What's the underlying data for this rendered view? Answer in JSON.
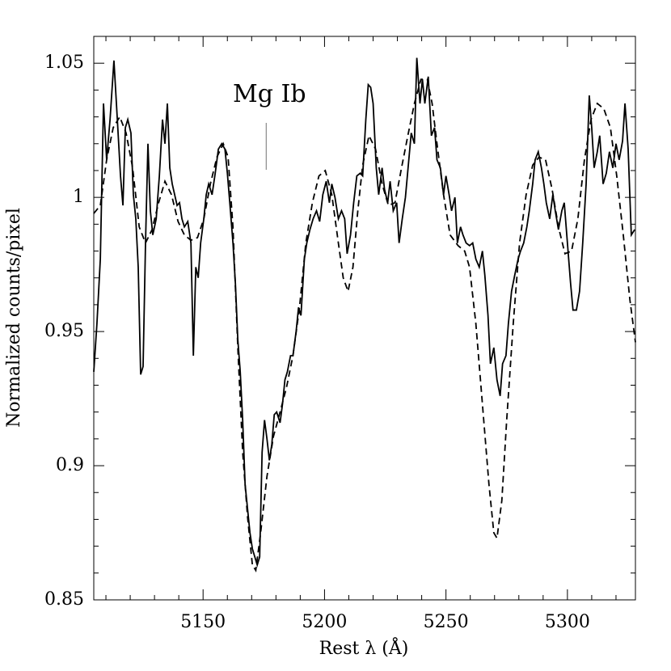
{
  "chart_data": {
    "type": "line",
    "xlabel": "Rest λ (Å)",
    "ylabel": "Normalized counts/pixel",
    "xlim": [
      5105,
      5328
    ],
    "ylim": [
      0.85,
      1.06
    ],
    "xticks": [
      5150,
      5200,
      5250,
      5300
    ],
    "yticks": [
      {
        "value": 0.85,
        "label": "0.85"
      },
      0.9,
      0.95,
      1,
      1.05
    ],
    "xminorticks": [
      5110,
      5120,
      5130,
      5140,
      5160,
      5170,
      5180,
      5190,
      5210,
      5220,
      5230,
      5240,
      5260,
      5270,
      5280,
      5290,
      5310,
      5320
    ],
    "yminorticks": [
      0.86,
      0.87,
      0.88,
      0.89,
      0.91,
      0.92,
      0.93,
      0.94,
      0.96,
      0.97,
      0.98,
      0.99,
      1.01,
      1.02,
      1.03,
      1.04,
      1.06
    ],
    "annotations": [
      {
        "text": "Mg Ib",
        "x": 5176,
        "color": "#888888"
      }
    ],
    "series": [
      {
        "color": "#000000",
        "style": "solid",
        "x": [
          5105.0,
          5106.3,
          5107.7,
          5109.0,
          5110.3,
          5111.7,
          5113.3,
          5114.7,
          5116.0,
          5117.0,
          5118.0,
          5119.0,
          5120.3,
          5121.3,
          5122.3,
          5123.3,
          5124.3,
          5125.3,
          5126.3,
          5127.3,
          5128.3,
          5129.3,
          5130.7,
          5132.0,
          5133.3,
          5134.3,
          5135.3,
          5136.3,
          5137.3,
          5138.3,
          5139.3,
          5140.3,
          5141.3,
          5142.3,
          5143.7,
          5145.0,
          5146.0,
          5147.0,
          5148.0,
          5149.0,
          5150.3,
          5151.3,
          5152.3,
          5153.7,
          5155.0,
          5156.3,
          5157.7,
          5159.0,
          5160.0,
          5161.0,
          5162.3,
          5163.3,
          5164.3,
          5165.3,
          5166.3,
          5167.3,
          5168.3,
          5169.3,
          5170.3,
          5171.3,
          5172.3,
          5173.3,
          5174.3,
          5175.3,
          5176.3,
          5177.3,
          5178.3,
          5179.3,
          5180.3,
          5181.7,
          5182.7,
          5183.7,
          5184.7,
          5186.0,
          5187.0,
          5188.3,
          5189.3,
          5190.3,
          5191.7,
          5192.7,
          5194.0,
          5195.3,
          5196.7,
          5198.0,
          5199.3,
          5200.7,
          5202.0,
          5203.0,
          5204.3,
          5205.7,
          5207.0,
          5208.3,
          5209.3,
          5210.7,
          5212.0,
          5213.3,
          5214.7,
          5215.7,
          5217.0,
          5218.0,
          5219.0,
          5220.0,
          5221.3,
          5222.3,
          5223.7,
          5224.7,
          5226.0,
          5227.0,
          5228.3,
          5229.7,
          5230.7,
          5232.0,
          5233.3,
          5234.7,
          5235.7,
          5237.0,
          5238.0,
          5239.3,
          5240.3,
          5241.3,
          5242.7,
          5244.0,
          5245.3,
          5246.3,
          5247.7,
          5249.0,
          5250.0,
          5251.3,
          5252.3,
          5253.7,
          5254.7,
          5256.0,
          5257.0,
          5258.3,
          5259.7,
          5261.0,
          5262.3,
          5263.7,
          5265.0,
          5266.0,
          5267.3,
          5268.3,
          5269.7,
          5271.0,
          5272.3,
          5273.3,
          5274.7,
          5275.7,
          5277.0,
          5278.3,
          5279.7,
          5280.7,
          5282.0,
          5283.3,
          5284.3,
          5285.7,
          5286.7,
          5288.0,
          5289.3,
          5290.3,
          5291.3,
          5292.7,
          5294.0,
          5295.0,
          5296.3,
          5297.7,
          5298.7,
          5300.0,
          5301.3,
          5302.3,
          5303.7,
          5305.0,
          5306.3,
          5307.7,
          5309.0,
          5310.0,
          5311.0,
          5312.3,
          5313.3,
          5314.7,
          5316.0,
          5317.3,
          5318.7,
          5320.0,
          5321.3,
          5322.7,
          5323.7,
          5325.0,
          5326.3,
          5327.7
        ],
        "values": [
          0.935,
          0.953,
          0.977,
          1.035,
          1.014,
          1.029,
          1.051,
          1.029,
          1.008,
          0.997,
          1.026,
          1.029,
          1.024,
          1.001,
          0.992,
          0.974,
          0.934,
          0.937,
          0.983,
          1.02,
          0.995,
          0.986,
          0.992,
          1.008,
          1.029,
          1.02,
          1.035,
          1.011,
          1.005,
          1.001,
          0.997,
          0.998,
          0.992,
          0.989,
          0.991,
          0.983,
          0.941,
          0.974,
          0.97,
          0.983,
          0.992,
          1.001,
          1.005,
          1.001,
          1.009,
          1.018,
          1.02,
          1.018,
          1.009,
          0.998,
          0.983,
          0.968,
          0.947,
          0.935,
          0.917,
          0.893,
          0.884,
          0.875,
          0.869,
          0.866,
          0.863,
          0.866,
          0.905,
          0.917,
          0.91,
          0.902,
          0.908,
          0.919,
          0.92,
          0.916,
          0.923,
          0.932,
          0.935,
          0.941,
          0.941,
          0.95,
          0.959,
          0.956,
          0.977,
          0.983,
          0.988,
          0.992,
          0.995,
          0.991,
          1.001,
          1.006,
          0.998,
          1.005,
          1.0,
          0.992,
          0.995,
          0.992,
          0.979,
          0.986,
          0.998,
          1.008,
          1.009,
          1.008,
          1.029,
          1.042,
          1.041,
          1.035,
          1.011,
          1.001,
          1.011,
          1.003,
          0.998,
          1.006,
          0.995,
          0.998,
          0.983,
          0.992,
          1.0,
          1.014,
          1.024,
          1.02,
          1.052,
          1.035,
          1.044,
          1.035,
          1.045,
          1.023,
          1.026,
          1.014,
          1.011,
          1.001,
          1.008,
          1.001,
          0.995,
          1.0,
          0.983,
          0.989,
          0.986,
          0.983,
          0.982,
          0.983,
          0.977,
          0.974,
          0.98,
          0.971,
          0.956,
          0.938,
          0.944,
          0.932,
          0.926,
          0.938,
          0.941,
          0.953,
          0.965,
          0.971,
          0.977,
          0.98,
          0.983,
          0.989,
          0.995,
          1.005,
          1.014,
          1.017,
          1.011,
          1.005,
          0.998,
          0.992,
          1.001,
          0.995,
          0.988,
          0.995,
          0.998,
          0.983,
          0.968,
          0.958,
          0.958,
          0.965,
          0.983,
          1.005,
          1.038,
          1.026,
          1.011,
          1.017,
          1.023,
          1.005,
          1.009,
          1.017,
          1.011,
          1.02,
          1.014,
          1.021,
          1.035,
          1.018,
          0.986,
          0.988
        ]
      },
      {
        "color": "#000000",
        "style": "dashed",
        "x": [
          5105.0,
          5107.7,
          5110.3,
          5113.0,
          5115.7,
          5118.3,
          5121.0,
          5123.7,
          5126.3,
          5129.0,
          5131.7,
          5134.3,
          5137.0,
          5139.7,
          5142.3,
          5145.0,
          5147.7,
          5150.3,
          5153.0,
          5155.7,
          5158.3,
          5160.3,
          5162.3,
          5164.3,
          5166.3,
          5168.3,
          5170.3,
          5171.7,
          5173.7,
          5176.3,
          5179.0,
          5181.7,
          5184.3,
          5187.0,
          5189.7,
          5192.3,
          5195.0,
          5197.7,
          5200.3,
          5203.0,
          5205.7,
          5207.7,
          5209.7,
          5211.7,
          5213.7,
          5215.7,
          5218.3,
          5221.0,
          5223.7,
          5226.3,
          5229.0,
          5231.7,
          5234.3,
          5237.0,
          5239.7,
          5242.3,
          5244.3,
          5246.3,
          5249.0,
          5251.7,
          5255.0,
          5257.7,
          5259.7,
          5262.3,
          5265.0,
          5267.7,
          5269.7,
          5271.0,
          5273.0,
          5275.0,
          5277.7,
          5280.3,
          5283.0,
          5285.7,
          5288.3,
          5291.0,
          5293.7,
          5296.3,
          5299.0,
          5301.7,
          5304.3,
          5307.0,
          5309.7,
          5312.3,
          5315.0,
          5317.7,
          5320.3,
          5323.0,
          5325.7,
          5328.0
        ],
        "values": [
          0.994,
          0.997,
          1.014,
          1.026,
          1.03,
          1.024,
          1.011,
          0.989,
          0.983,
          0.988,
          0.998,
          1.006,
          1.001,
          0.991,
          0.986,
          0.984,
          0.985,
          0.992,
          1.005,
          1.015,
          1.02,
          1.015,
          0.989,
          0.944,
          0.905,
          0.881,
          0.863,
          0.861,
          0.875,
          0.896,
          0.911,
          0.92,
          0.929,
          0.941,
          0.959,
          0.983,
          0.998,
          1.008,
          1.01,
          1.001,
          0.983,
          0.97,
          0.965,
          0.974,
          0.995,
          1.012,
          1.023,
          1.018,
          1.005,
          0.997,
          0.998,
          1.011,
          1.023,
          1.035,
          1.044,
          1.044,
          1.035,
          1.02,
          1.001,
          0.986,
          0.982,
          0.98,
          0.974,
          0.953,
          0.923,
          0.893,
          0.875,
          0.873,
          0.887,
          0.917,
          0.953,
          0.983,
          1.001,
          1.012,
          1.015,
          1.014,
          1.003,
          0.989,
          0.979,
          0.98,
          0.992,
          1.014,
          1.029,
          1.035,
          1.033,
          1.026,
          1.008,
          0.986,
          0.962,
          0.946
        ]
      }
    ]
  }
}
